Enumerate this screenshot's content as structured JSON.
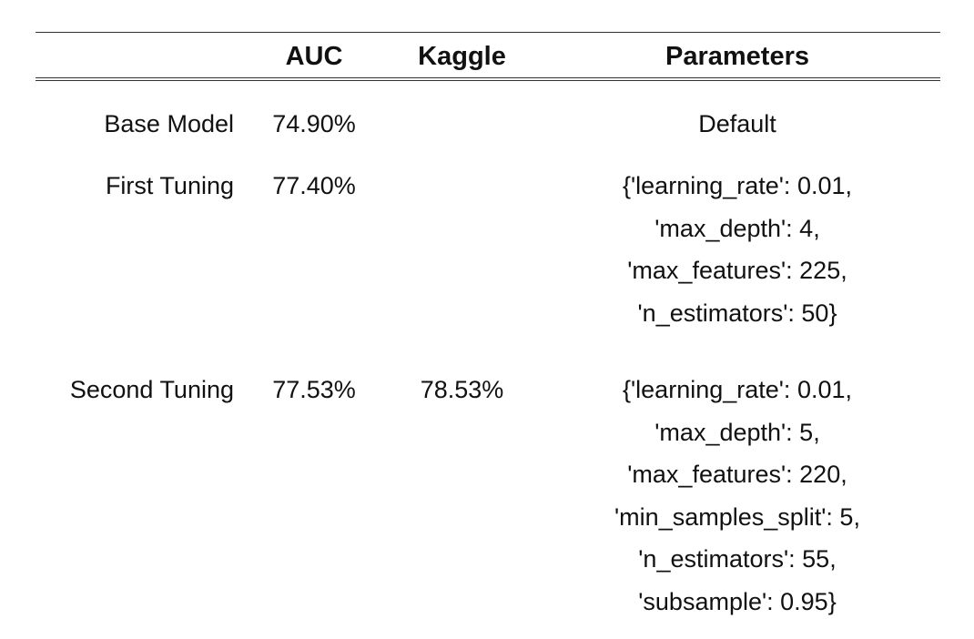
{
  "table": {
    "headers": {
      "label": "",
      "auc": "AUC",
      "kaggle": "Kaggle",
      "parameters": "Parameters"
    },
    "rows": [
      {
        "label": "Base Model",
        "auc": "74.90%",
        "kaggle": "",
        "parameters": [
          "Default"
        ]
      },
      {
        "label": "First Tuning",
        "auc": "77.40%",
        "kaggle": "",
        "parameters": [
          "{'learning_rate': 0.01,",
          "'max_depth': 4,",
          "'max_features': 225,",
          "'n_estimators': 50}"
        ]
      },
      {
        "label": "Second Tuning",
        "auc": "77.53%",
        "kaggle": "78.53%",
        "parameters": [
          "{'learning_rate': 0.01,",
          "'max_depth': 5,",
          "'max_features': 220,",
          "'min_samples_split': 5,",
          "'n_estimators': 55,",
          "'subsample': 0.95}"
        ]
      }
    ]
  }
}
